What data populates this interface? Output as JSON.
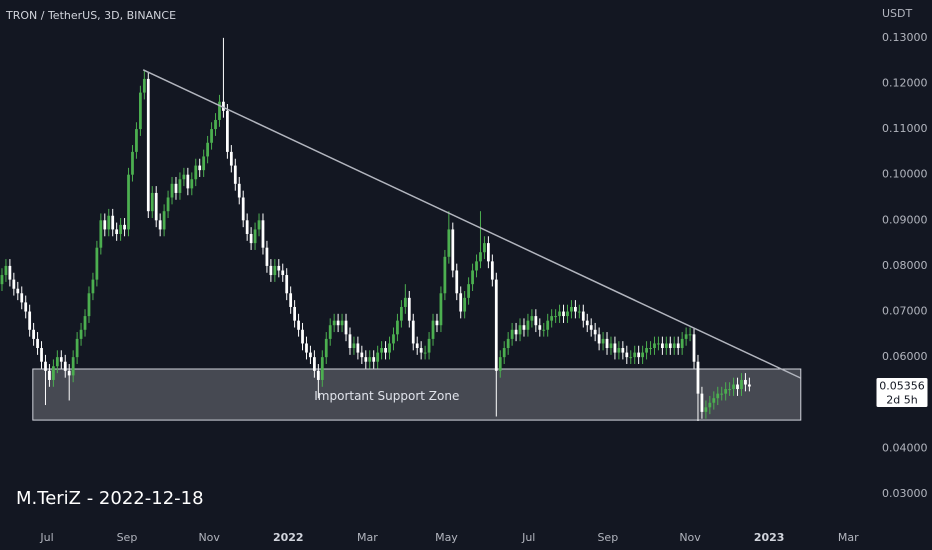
{
  "chart_data": {
    "type": "candlestick",
    "title": "TRON / TetherUS, 3D, BINANCE",
    "y_unit": "USDT",
    "watermark": "M.TeriZ - 2022-12-18",
    "up_color": "#4caf50",
    "down_color": "#ffffff",
    "grid": false,
    "xlim": [
      -0.5,
      219.5
    ],
    "xticks": [
      {
        "value": 11.4,
        "label": "Jul"
      },
      {
        "value": 31.6,
        "label": "Sep"
      },
      {
        "value": 52.4,
        "label": "Nov"
      },
      {
        "value": 72.4,
        "label": "2022"
      },
      {
        "value": 92.4,
        "label": "Mar"
      },
      {
        "value": 112.4,
        "label": "May"
      },
      {
        "value": 133.2,
        "label": "Jul"
      },
      {
        "value": 153.2,
        "label": "Sep"
      },
      {
        "value": 174,
        "label": "Nov"
      },
      {
        "value": 194,
        "label": "2023"
      },
      {
        "value": 214,
        "label": "Mar"
      }
    ],
    "ylim": [
      0.0232,
      0.1383
    ],
    "yticks": [
      {
        "value": 0.13,
        "label": "0.13000"
      },
      {
        "value": 0.12,
        "label": "0.12000"
      },
      {
        "value": 0.11,
        "label": "0.11000"
      },
      {
        "value": 0.1,
        "label": "0.10000"
      },
      {
        "value": 0.09,
        "label": "0.09000"
      },
      {
        "value": 0.08,
        "label": "0.08000"
      },
      {
        "value": 0.07,
        "label": "0.07000"
      },
      {
        "value": 0.06,
        "label": "0.06000"
      },
      {
        "value": 0.05,
        "label": "0.05000"
      },
      {
        "value": 0.04,
        "label": "0.04000"
      },
      {
        "value": 0.03,
        "label": "0.03000"
      }
    ],
    "last_price": 0.05356,
    "countdown": "2d 5h",
    "trendline": {
      "x": [
        35.7,
        202
      ],
      "y": [
        0.123,
        0.0554
      ]
    },
    "zone": {
      "label": "Important Support Zone",
      "x": [
        7.8,
        202
      ],
      "y": [
        0.0462,
        0.0574
      ]
    },
    "candles": [
      [
        0.076,
        0.0795,
        0.0745,
        0.078
      ],
      [
        0.078,
        0.0815,
        0.0765,
        0.08
      ],
      [
        0.08,
        0.0815,
        0.0755,
        0.077
      ],
      [
        0.077,
        0.0785,
        0.0735,
        0.075
      ],
      [
        0.075,
        0.0765,
        0.0725,
        0.074
      ],
      [
        0.074,
        0.0755,
        0.0705,
        0.072
      ],
      [
        0.072,
        0.0735,
        0.0685,
        0.07
      ],
      [
        0.07,
        0.0715,
        0.0645,
        0.066
      ],
      [
        0.066,
        0.0675,
        0.0625,
        0.064
      ],
      [
        0.064,
        0.0655,
        0.0605,
        0.062
      ],
      [
        0.062,
        0.0635,
        0.0575,
        0.059
      ],
      [
        0.059,
        0.0605,
        0.0495,
        0.057
      ],
      [
        0.057,
        0.0585,
        0.0535,
        0.055
      ],
      [
        0.055,
        0.0595,
        0.0535,
        0.058
      ],
      [
        0.058,
        0.0615,
        0.0565,
        0.06
      ],
      [
        0.06,
        0.0615,
        0.0575,
        0.059
      ],
      [
        0.059,
        0.0605,
        0.0555,
        0.057
      ],
      [
        0.057,
        0.0585,
        0.0505,
        0.056
      ],
      [
        0.056,
        0.0615,
        0.0545,
        0.06
      ],
      [
        0.06,
        0.0655,
        0.0585,
        0.064
      ],
      [
        0.064,
        0.0675,
        0.0625,
        0.066
      ],
      [
        0.066,
        0.0705,
        0.0645,
        0.069
      ],
      [
        0.069,
        0.0755,
        0.0675,
        0.074
      ],
      [
        0.074,
        0.0785,
        0.0725,
        0.077
      ],
      [
        0.077,
        0.0855,
        0.0755,
        0.084
      ],
      [
        0.084,
        0.0915,
        0.0825,
        0.09
      ],
      [
        0.09,
        0.0915,
        0.0865,
        0.088
      ],
      [
        0.088,
        0.0925,
        0.0865,
        0.091
      ],
      [
        0.091,
        0.0925,
        0.0865,
        0.088
      ],
      [
        0.088,
        0.0895,
        0.0855,
        0.087
      ],
      [
        0.087,
        0.0905,
        0.0855,
        0.089
      ],
      [
        0.089,
        0.0905,
        0.0865,
        0.088
      ],
      [
        0.088,
        0.1015,
        0.0865,
        0.1
      ],
      [
        0.1,
        0.1065,
        0.0985,
        0.105
      ],
      [
        0.105,
        0.1115,
        0.1035,
        0.11
      ],
      [
        0.11,
        0.1195,
        0.1085,
        0.118
      ],
      [
        0.118,
        0.123,
        0.1165,
        0.121
      ],
      [
        0.121,
        0.1225,
        0.0905,
        0.092
      ],
      [
        0.092,
        0.0975,
        0.0905,
        0.096
      ],
      [
        0.096,
        0.0975,
        0.0885,
        0.09
      ],
      [
        0.09,
        0.0915,
        0.0865,
        0.088
      ],
      [
        0.088,
        0.0935,
        0.0865,
        0.092
      ],
      [
        0.092,
        0.0965,
        0.0905,
        0.095
      ],
      [
        0.095,
        0.0995,
        0.0935,
        0.098
      ],
      [
        0.098,
        0.0995,
        0.0945,
        0.096
      ],
      [
        0.096,
        0.1005,
        0.0945,
        0.099
      ],
      [
        0.099,
        0.1015,
        0.0975,
        0.1
      ],
      [
        0.1,
        0.1015,
        0.0955,
        0.097
      ],
      [
        0.097,
        0.1005,
        0.0955,
        0.099
      ],
      [
        0.099,
        0.1035,
        0.0975,
        0.102
      ],
      [
        0.102,
        0.1035,
        0.0995,
        0.101
      ],
      [
        0.101,
        0.1055,
        0.0995,
        0.104
      ],
      [
        0.104,
        0.1085,
        0.1025,
        0.107
      ],
      [
        0.107,
        0.1115,
        0.1055,
        0.11
      ],
      [
        0.11,
        0.1135,
        0.1085,
        0.112
      ],
      [
        0.112,
        0.1175,
        0.1105,
        0.116
      ],
      [
        0.116,
        0.13,
        0.1125,
        0.114
      ],
      [
        0.114,
        0.1155,
        0.1035,
        0.105
      ],
      [
        0.105,
        0.1065,
        0.1005,
        0.102
      ],
      [
        0.102,
        0.1035,
        0.0965,
        0.098
      ],
      [
        0.098,
        0.0995,
        0.0935,
        0.095
      ],
      [
        0.095,
        0.0965,
        0.0885,
        0.09
      ],
      [
        0.09,
        0.0915,
        0.0855,
        0.087
      ],
      [
        0.087,
        0.0885,
        0.0835,
        0.085
      ],
      [
        0.085,
        0.0895,
        0.0835,
        0.088
      ],
      [
        0.088,
        0.0915,
        0.0865,
        0.09
      ],
      [
        0.09,
        0.0915,
        0.0825,
        0.084
      ],
      [
        0.084,
        0.0855,
        0.0785,
        0.08
      ],
      [
        0.08,
        0.0815,
        0.0765,
        0.078
      ],
      [
        0.078,
        0.0815,
        0.0765,
        0.08
      ],
      [
        0.08,
        0.0815,
        0.0775,
        0.079
      ],
      [
        0.079,
        0.0805,
        0.0765,
        0.078
      ],
      [
        0.078,
        0.0795,
        0.0725,
        0.074
      ],
      [
        0.074,
        0.0755,
        0.0695,
        0.071
      ],
      [
        0.071,
        0.0725,
        0.0665,
        0.068
      ],
      [
        0.068,
        0.0695,
        0.0645,
        0.066
      ],
      [
        0.066,
        0.0675,
        0.0615,
        0.063
      ],
      [
        0.063,
        0.0645,
        0.0595,
        0.061
      ],
      [
        0.061,
        0.0625,
        0.0585,
        0.06
      ],
      [
        0.06,
        0.0615,
        0.0555,
        0.057
      ],
      [
        0.057,
        0.0585,
        0.051,
        0.055
      ],
      [
        0.055,
        0.0615,
        0.0535,
        0.06
      ],
      [
        0.06,
        0.0655,
        0.0585,
        0.064
      ],
      [
        0.064,
        0.0685,
        0.0625,
        0.067
      ],
      [
        0.067,
        0.0695,
        0.0655,
        0.068
      ],
      [
        0.068,
        0.0695,
        0.0655,
        0.067
      ],
      [
        0.067,
        0.0695,
        0.0655,
        0.068
      ],
      [
        0.068,
        0.0695,
        0.0635,
        0.065
      ],
      [
        0.065,
        0.0665,
        0.0605,
        0.062
      ],
      [
        0.062,
        0.0645,
        0.0605,
        0.063
      ],
      [
        0.063,
        0.0645,
        0.0595,
        0.061
      ],
      [
        0.061,
        0.0625,
        0.0585,
        0.06
      ],
      [
        0.06,
        0.0615,
        0.0575,
        0.059
      ],
      [
        0.059,
        0.0615,
        0.0575,
        0.06
      ],
      [
        0.06,
        0.0615,
        0.0575,
        0.059
      ],
      [
        0.059,
        0.0625,
        0.0575,
        0.061
      ],
      [
        0.061,
        0.0635,
        0.0595,
        0.062
      ],
      [
        0.062,
        0.0635,
        0.0595,
        0.061
      ],
      [
        0.061,
        0.0645,
        0.0595,
        0.063
      ],
      [
        0.063,
        0.0665,
        0.0615,
        0.065
      ],
      [
        0.065,
        0.0695,
        0.0635,
        0.068
      ],
      [
        0.068,
        0.0725,
        0.0665,
        0.071
      ],
      [
        0.071,
        0.076,
        0.0695,
        0.073
      ],
      [
        0.073,
        0.0745,
        0.0665,
        0.068
      ],
      [
        0.068,
        0.0695,
        0.0615,
        0.063
      ],
      [
        0.063,
        0.0645,
        0.0605,
        0.062
      ],
      [
        0.062,
        0.0635,
        0.0595,
        0.061
      ],
      [
        0.061,
        0.0625,
        0.0595,
        0.061
      ],
      [
        0.061,
        0.0655,
        0.0595,
        0.064
      ],
      [
        0.064,
        0.0695,
        0.0625,
        0.068
      ],
      [
        0.068,
        0.0695,
        0.0655,
        0.067
      ],
      [
        0.067,
        0.0755,
        0.0655,
        0.074
      ],
      [
        0.074,
        0.0835,
        0.0725,
        0.082
      ],
      [
        0.082,
        0.092,
        0.0805,
        0.088
      ],
      [
        0.088,
        0.0895,
        0.0775,
        0.079
      ],
      [
        0.079,
        0.0805,
        0.0725,
        0.074
      ],
      [
        0.074,
        0.0755,
        0.0685,
        0.07
      ],
      [
        0.07,
        0.0745,
        0.0685,
        0.073
      ],
      [
        0.073,
        0.0775,
        0.0715,
        0.076
      ],
      [
        0.076,
        0.0805,
        0.0745,
        0.079
      ],
      [
        0.079,
        0.0825,
        0.0775,
        0.081
      ],
      [
        0.081,
        0.092,
        0.0795,
        0.083
      ],
      [
        0.083,
        0.0865,
        0.0815,
        0.085
      ],
      [
        0.085,
        0.0865,
        0.0795,
        0.081
      ],
      [
        0.081,
        0.0825,
        0.0755,
        0.077
      ],
      [
        0.077,
        0.0785,
        0.047,
        0.057
      ],
      [
        0.057,
        0.0615,
        0.0555,
        0.06
      ],
      [
        0.06,
        0.0635,
        0.0585,
        0.062
      ],
      [
        0.062,
        0.0655,
        0.0605,
        0.064
      ],
      [
        0.064,
        0.0675,
        0.0625,
        0.066
      ],
      [
        0.066,
        0.0675,
        0.0635,
        0.065
      ],
      [
        0.065,
        0.0685,
        0.0635,
        0.067
      ],
      [
        0.067,
        0.0685,
        0.0645,
        0.066
      ],
      [
        0.066,
        0.0695,
        0.0645,
        0.068
      ],
      [
        0.068,
        0.0705,
        0.0665,
        0.069
      ],
      [
        0.069,
        0.0705,
        0.0655,
        0.067
      ],
      [
        0.067,
        0.0685,
        0.0645,
        0.066
      ],
      [
        0.066,
        0.0675,
        0.0645,
        0.066
      ],
      [
        0.066,
        0.0695,
        0.0645,
        0.068
      ],
      [
        0.068,
        0.0705,
        0.0665,
        0.069
      ],
      [
        0.069,
        0.0705,
        0.0675,
        0.069
      ],
      [
        0.069,
        0.0715,
        0.0675,
        0.07
      ],
      [
        0.07,
        0.0715,
        0.0675,
        0.069
      ],
      [
        0.069,
        0.0715,
        0.0675,
        0.07
      ],
      [
        0.07,
        0.0725,
        0.0685,
        0.071
      ],
      [
        0.071,
        0.0725,
        0.0685,
        0.07
      ],
      [
        0.07,
        0.0715,
        0.0685,
        0.07
      ],
      [
        0.07,
        0.0715,
        0.0665,
        0.068
      ],
      [
        0.068,
        0.0695,
        0.0655,
        0.067
      ],
      [
        0.067,
        0.0685,
        0.0645,
        0.066
      ],
      [
        0.066,
        0.0675,
        0.0635,
        0.065
      ],
      [
        0.065,
        0.0665,
        0.0615,
        0.063
      ],
      [
        0.063,
        0.0655,
        0.0615,
        0.064
      ],
      [
        0.064,
        0.0655,
        0.0605,
        0.062
      ],
      [
        0.062,
        0.0645,
        0.0605,
        0.063
      ],
      [
        0.063,
        0.0645,
        0.0595,
        0.061
      ],
      [
        0.061,
        0.0635,
        0.0595,
        0.062
      ],
      [
        0.062,
        0.0635,
        0.0595,
        0.061
      ],
      [
        0.061,
        0.0625,
        0.0585,
        0.06
      ],
      [
        0.06,
        0.0615,
        0.0585,
        0.06
      ],
      [
        0.06,
        0.0625,
        0.0585,
        0.061
      ],
      [
        0.061,
        0.0625,
        0.0585,
        0.06
      ],
      [
        0.06,
        0.0625,
        0.0585,
        0.061
      ],
      [
        0.061,
        0.0635,
        0.0595,
        0.062
      ],
      [
        0.062,
        0.0635,
        0.0605,
        0.062
      ],
      [
        0.062,
        0.0645,
        0.0605,
        0.063
      ],
      [
        0.063,
        0.0645,
        0.0615,
        0.063
      ],
      [
        0.063,
        0.0645,
        0.0605,
        0.062
      ],
      [
        0.062,
        0.0645,
        0.0605,
        0.063
      ],
      [
        0.063,
        0.0645,
        0.0605,
        0.062
      ],
      [
        0.062,
        0.0645,
        0.0605,
        0.063
      ],
      [
        0.063,
        0.0645,
        0.0605,
        0.062
      ],
      [
        0.062,
        0.0655,
        0.0605,
        0.064
      ],
      [
        0.064,
        0.0665,
        0.0625,
        0.065
      ],
      [
        0.065,
        0.0665,
        0.0635,
        0.065
      ],
      [
        0.065,
        0.0665,
        0.0575,
        0.059
      ],
      [
        0.059,
        0.0605,
        0.046,
        0.052
      ],
      [
        0.052,
        0.0535,
        0.0465,
        0.048
      ],
      [
        0.048,
        0.0505,
        0.0465,
        0.049
      ],
      [
        0.049,
        0.0515,
        0.0475,
        0.05
      ],
      [
        0.05,
        0.0525,
        0.0485,
        0.051
      ],
      [
        0.051,
        0.0535,
        0.0495,
        0.052
      ],
      [
        0.052,
        0.0535,
        0.0505,
        0.052
      ],
      [
        0.052,
        0.0545,
        0.0505,
        0.053
      ],
      [
        0.053,
        0.0545,
        0.0515,
        0.053
      ],
      [
        0.053,
        0.0555,
        0.0515,
        0.054
      ],
      [
        0.054,
        0.0555,
        0.0515,
        0.053
      ],
      [
        0.053,
        0.0565,
        0.0515,
        0.055
      ],
      [
        0.055,
        0.0565,
        0.0525,
        0.054
      ],
      [
        0.054,
        0.0555,
        0.0525,
        0.05356
      ]
    ]
  }
}
